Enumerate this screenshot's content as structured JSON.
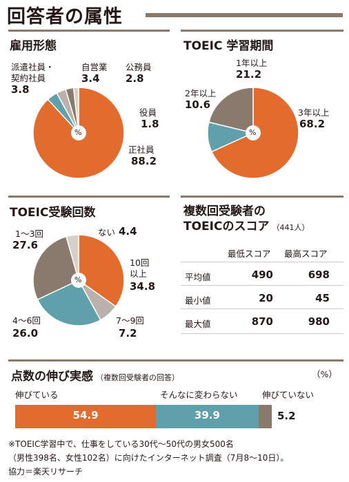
{
  "page_title": "回答者の属性",
  "percent_symbol": "%",
  "chart_data": [
    {
      "type": "pie",
      "title": "雇用形態",
      "categories": [
        "正社員",
        "派遣社員・契約社員",
        "自営業",
        "公務員",
        "役員"
      ],
      "values": [
        88.2,
        3.8,
        3.4,
        2.8,
        1.8
      ],
      "colors": [
        "#e26b2e",
        "#5fa0ab",
        "#b9b2ac",
        "#8a7a6d",
        "#d6d0ca"
      ],
      "labels": {
        "seishain": {
          "name": "正社員",
          "value": "88.2"
        },
        "haken_line1": "派遣社員・",
        "haken_line2": "契約社員",
        "haken_value": "3.8",
        "jieigyo": {
          "name": "自営業",
          "value": "3.4"
        },
        "koumuin": {
          "name": "公務員",
          "value": "2.8"
        },
        "yakuin": {
          "name": "役員",
          "value": "1.8"
        }
      }
    },
    {
      "type": "pie",
      "title": "TOEIC 学習期間",
      "categories": [
        "3年以上",
        "2年以上",
        "1年以上"
      ],
      "values": [
        68.2,
        10.6,
        21.2
      ],
      "colors": [
        "#e26b2e",
        "#5fa0ab",
        "#8a7a6d"
      ],
      "labels": {
        "three": {
          "name": "3年以上",
          "value": "68.2"
        },
        "two": {
          "name": "2年以上",
          "value": "10.6"
        },
        "one": {
          "name": "1年以上",
          "value": "21.2"
        }
      }
    },
    {
      "type": "pie",
      "title": "TOEIC受験回数",
      "categories": [
        "10回以上",
        "7〜9回",
        "4〜6回",
        "1〜3回",
        "ない"
      ],
      "values": [
        34.8,
        7.2,
        26.0,
        27.6,
        4.4
      ],
      "colors": [
        "#e26b2e",
        "#b9b2ac",
        "#5fa0ab",
        "#8a7a6d",
        "#d6d0ca"
      ],
      "labels": {
        "ten_line1": "10回",
        "ten_line2": "以上",
        "ten_value": "34.8",
        "seven": {
          "name": "7〜9回",
          "value": "7.2"
        },
        "four": {
          "name": "4〜6回",
          "value": "26.0"
        },
        "one": {
          "name": "1〜3回",
          "value": "27.6"
        },
        "none": {
          "name": "ない",
          "value": "4.4"
        }
      }
    },
    {
      "type": "table",
      "title": "複数回受験者の",
      "title_line2": "TOEICのスコア",
      "subtitle": "（441人）",
      "columns": [
        "",
        "最低スコア",
        "最高スコア"
      ],
      "rows": [
        {
          "label": "平均値",
          "low": "490",
          "high": "698"
        },
        {
          "label": "最小値",
          "low": "20",
          "high": "45"
        },
        {
          "label": "最大値",
          "low": "870",
          "high": "980"
        }
      ]
    },
    {
      "type": "bar",
      "orientation": "horizontal-stacked",
      "title": "点数の伸び実感",
      "subtitle": "（複数回受験者の回答）",
      "unit": "（%）",
      "categories": [
        "伸びている",
        "そんなに変わらない",
        "伸びていない"
      ],
      "values": [
        54.9,
        39.9,
        5.2
      ],
      "value_labels": [
        "54.9",
        "39.9",
        "5.2"
      ],
      "colors": [
        "#e26b2e",
        "#5fa0ab",
        "#8a7a6d"
      ]
    }
  ],
  "footnote": {
    "line1": "※TOEIC学習中で、仕事をしている30代〜50代の男女500名",
    "line2": "（男性398名、女性102名）に向けたインターネット調査（7月8〜10日）。",
    "line3": "協力＝楽天リサーチ"
  }
}
